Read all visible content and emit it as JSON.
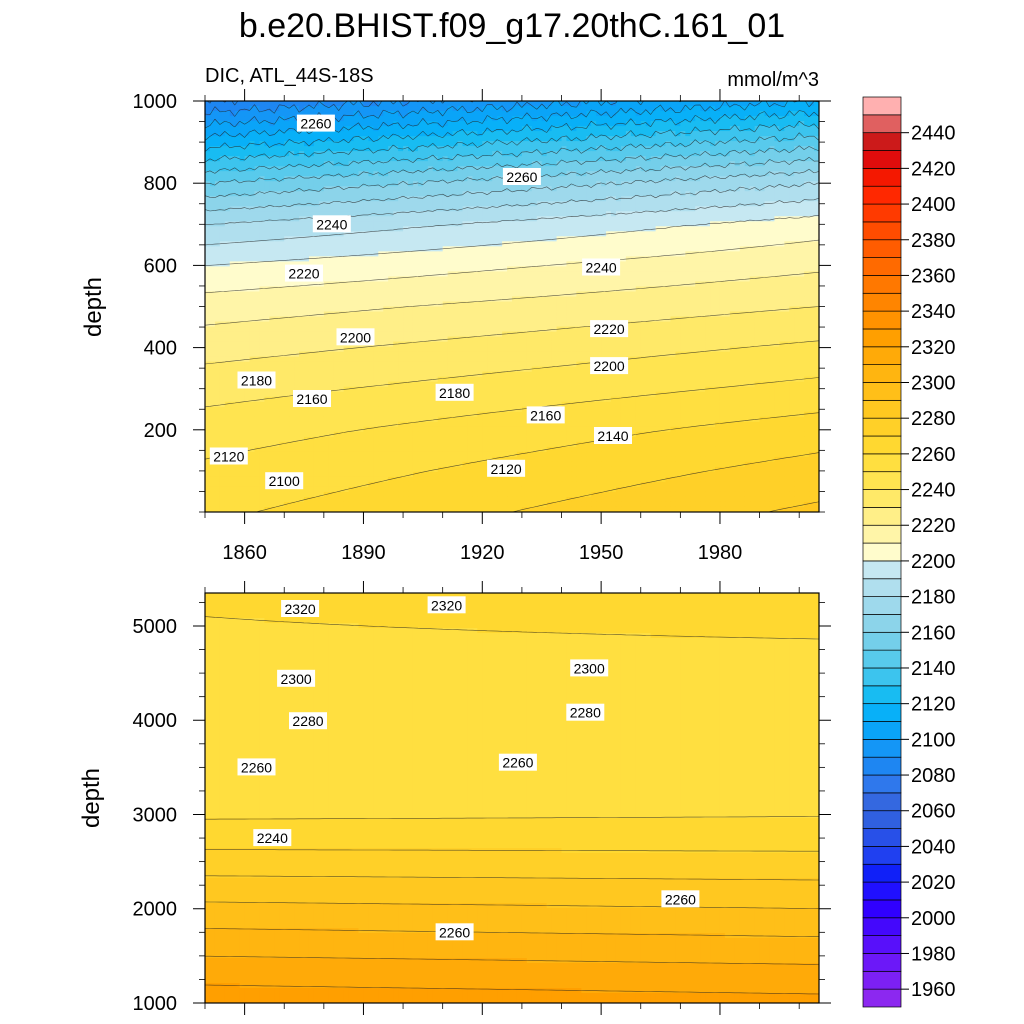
{
  "figure": {
    "title": "b.e20.BHIST.f09_g17.20thC.161_01",
    "left_label": "DIC, ATL_44S-18S",
    "units": "mmol/m^3"
  },
  "chart_data": [
    {
      "type": "contour",
      "panel": "upper",
      "variable": "DIC",
      "region": "ATL_44S-18S",
      "units": "mmol/m^3",
      "xlabel": "",
      "ylabel": "depth",
      "xlim": [
        1850,
        2005
      ],
      "ylim": [
        1000,
        0
      ],
      "xticks": [
        1860,
        1890,
        1920,
        1950,
        1980
      ],
      "yticks": [
        200,
        400,
        600,
        800,
        1000
      ],
      "contour_interval": 10,
      "depth_profile": [
        {
          "depth": 0,
          "v_1850": 2080,
          "v_2005": 2110
        },
        {
          "depth": 100,
          "v_1850": 2115,
          "v_2005": 2145
        },
        {
          "depth": 200,
          "v_1850": 2150,
          "v_2005": 2180
        },
        {
          "depth": 300,
          "v_1850": 2180,
          "v_2005": 2205
        },
        {
          "depth": 400,
          "v_1850": 2200,
          "v_2005": 2218
        },
        {
          "depth": 500,
          "v_1850": 2215,
          "v_2005": 2230
        },
        {
          "depth": 600,
          "v_1850": 2226,
          "v_2005": 2242
        },
        {
          "depth": 700,
          "v_1850": 2236,
          "v_2005": 2253
        },
        {
          "depth": 800,
          "v_1850": 2245,
          "v_2005": 2265
        },
        {
          "depth": 900,
          "v_1850": 2252,
          "v_2005": 2274
        },
        {
          "depth": 1000,
          "v_1850": 2258,
          "v_2005": 2282
        }
      ],
      "contour_labels": [
        {
          "value": 2100,
          "year": 1870,
          "depth": 75
        },
        {
          "value": 2120,
          "year": 1856,
          "depth": 135
        },
        {
          "value": 2120,
          "year": 1926,
          "depth": 105
        },
        {
          "value": 2140,
          "year": 1953,
          "depth": 185
        },
        {
          "value": 2160,
          "year": 1936,
          "depth": 235
        },
        {
          "value": 2160,
          "year": 1877,
          "depth": 275
        },
        {
          "value": 2180,
          "year": 1913,
          "depth": 290
        },
        {
          "value": 2180,
          "year": 1863,
          "depth": 320
        },
        {
          "value": 2200,
          "year": 1888,
          "depth": 425
        },
        {
          "value": 2200,
          "year": 1952,
          "depth": 355
        },
        {
          "value": 2220,
          "year": 1952,
          "depth": 445
        },
        {
          "value": 2220,
          "year": 1875,
          "depth": 580
        },
        {
          "value": 2240,
          "year": 1950,
          "depth": 595
        },
        {
          "value": 2240,
          "year": 1882,
          "depth": 700
        },
        {
          "value": 2260,
          "year": 1930,
          "depth": 815
        },
        {
          "value": 2260,
          "year": 1878,
          "depth": 945
        }
      ]
    },
    {
      "type": "contour",
      "panel": "lower",
      "variable": "DIC",
      "region": "ATL_44S-18S",
      "units": "mmol/m^3",
      "xlabel": "",
      "ylabel": "depth",
      "xlim": [
        1850,
        2005
      ],
      "ylim": [
        5350,
        1000
      ],
      "xticks": [
        1860,
        1890,
        1920,
        1950,
        1980
      ],
      "yticks": [
        1000,
        2000,
        3000,
        4000,
        5000
      ],
      "contour_interval": 10,
      "depth_profile": [
        {
          "depth": 1000,
          "v": 2262
        },
        {
          "depth": 1500,
          "v": 2258
        },
        {
          "depth": 2000,
          "v": 2253
        },
        {
          "depth": 2500,
          "v": 2250
        },
        {
          "depth": 3000,
          "v": 2252
        },
        {
          "depth": 3500,
          "v": 2262
        },
        {
          "depth": 4000,
          "v": 2280
        },
        {
          "depth": 4500,
          "v": 2298
        },
        {
          "depth": 5000,
          "v": 2315
        },
        {
          "depth": 5350,
          "v": 2326
        }
      ],
      "contour_labels": [
        {
          "value": 2260,
          "year": 1913,
          "depth": 1750
        },
        {
          "value": 2260,
          "year": 1970,
          "depth": 2100
        },
        {
          "value": 2240,
          "year": 1867,
          "depth": 2750
        },
        {
          "value": 2260,
          "year": 1863,
          "depth": 3500
        },
        {
          "value": 2260,
          "year": 1929,
          "depth": 3550
        },
        {
          "value": 2280,
          "year": 1876,
          "depth": 3990
        },
        {
          "value": 2280,
          "year": 1946,
          "depth": 4080
        },
        {
          "value": 2300,
          "year": 1873,
          "depth": 4440
        },
        {
          "value": 2300,
          "year": 1947,
          "depth": 4550
        },
        {
          "value": 2320,
          "year": 1874,
          "depth": 5180
        },
        {
          "value": 2320,
          "year": 1911,
          "depth": 5220
        }
      ]
    }
  ],
  "colorbar": {
    "bounds": [
      1950,
      2450
    ],
    "interval": 10,
    "labels": [
      "1960",
      "1980",
      "2000",
      "2020",
      "2040",
      "2060",
      "2080",
      "2100",
      "2120",
      "2140",
      "2160",
      "2180",
      "2200",
      "2220",
      "2240",
      "2260",
      "2280",
      "2300",
      "2320",
      "2340",
      "2360",
      "2380",
      "2400",
      "2420",
      "2440"
    ],
    "colors": [
      "#8c28f0",
      "#7c20f4",
      "#6c18f8",
      "#5810fa",
      "#4408fc",
      "#3000ff",
      "#2010ff",
      "#1020f8",
      "#2040f0",
      "#2850e8",
      "#3060e0",
      "#3468e0",
      "#2f78ec",
      "#1e86f2",
      "#1496f6",
      "#0aa4f8",
      "#08b0f8",
      "#18bcf2",
      "#3cc4ee",
      "#58caec",
      "#74cfea",
      "#8cd4ea",
      "#9ed9ec",
      "#b0dfee",
      "#c6e8f2",
      "#fffccc",
      "#fff5a8",
      "#ffef88",
      "#ffe968",
      "#ffe450",
      "#ffdf40",
      "#ffd830",
      "#ffd028",
      "#ffc820",
      "#ffbf18",
      "#ffb510",
      "#ffaa08",
      "#ff9f00",
      "#ff9200",
      "#ff8500",
      "#ff7800",
      "#ff6a00",
      "#ff5c00",
      "#ff4c00",
      "#ff3a00",
      "#ff2800",
      "#f41800",
      "#e00c0c",
      "#cc1a1a",
      "#e06060",
      "#ffb0b0"
    ]
  }
}
